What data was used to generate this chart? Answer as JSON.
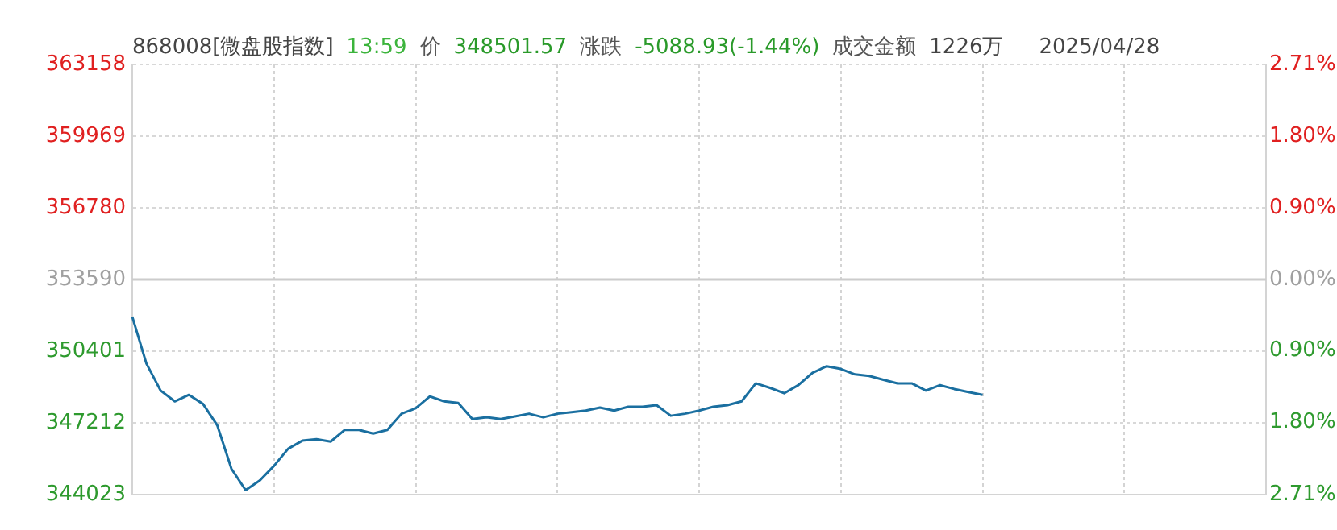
{
  "chart_data": {
    "type": "line",
    "title": "868008[微盘股指数]",
    "annotations": [
      "13:59",
      "价",
      "348501.57",
      "涨跌",
      "-5088.93(-1.44%)",
      "成交金额",
      "1226万",
      "2025/04/28"
    ],
    "categories": [
      null,
      null,
      null,
      null,
      null,
      null,
      null,
      null,
      null,
      null,
      null,
      null,
      null,
      null,
      null,
      null,
      null,
      null,
      null,
      null,
      null,
      null,
      null,
      null,
      null,
      null,
      null,
      null,
      null,
      null,
      null,
      null,
      null,
      null,
      null,
      null,
      null,
      null,
      null,
      null,
      null,
      null,
      null,
      null,
      null,
      null,
      null,
      null,
      null,
      null,
      null,
      null,
      null,
      null,
      null,
      null,
      null,
      null,
      null,
      null,
      null,
      null,
      null,
      null,
      null,
      null,
      null,
      null,
      null,
      null,
      null,
      null,
      null,
      null,
      null,
      null,
      null,
      null,
      null,
      null,
      null
    ],
    "series": [
      {
        "color": "#1a6fa0",
        "values": [
          351940,
          349850,
          348650,
          348170,
          348460,
          348050,
          347100,
          345170,
          344220,
          344650,
          345300,
          346060,
          346420,
          346490,
          346380,
          346900,
          346900,
          346740,
          346900,
          347620,
          347860,
          348390,
          348170,
          348100,
          347380,
          347460,
          347380,
          347500,
          347620,
          347460,
          347620,
          347690,
          347760,
          347890,
          347760,
          347930,
          347930,
          348000,
          347530,
          347620,
          347760,
          347930,
          348000,
          348170,
          348970,
          348770,
          348530,
          348890,
          349440,
          349730,
          349610,
          349370,
          349300,
          349130,
          348970,
          348970,
          348650,
          348890,
          348720,
          348580,
          348460,
          null,
          null,
          null,
          null,
          null,
          null,
          null,
          null,
          null,
          null,
          null,
          null,
          null,
          null,
          null,
          null,
          null,
          null,
          null,
          null
        ]
      }
    ],
    "ylim": [
      344023,
      363158
    ],
    "yticks": [
      344023,
      347212,
      350401,
      353590,
      356780,
      359969,
      363158
    ],
    "y2lim": [
      -2.71,
      2.71
    ],
    "y2ticks": [
      {
        "value": -2.71,
        "label": "2.71%"
      },
      {
        "value": -1.8,
        "label": "1.80%"
      },
      {
        "value": -0.9,
        "label": "0.90%"
      },
      {
        "value": 0,
        "label": "0.00%"
      },
      {
        "value": 0.9,
        "label": "0.90%"
      },
      {
        "value": 1.8,
        "label": "1.80%"
      },
      {
        "value": 2.71,
        "label": "2.71%"
      }
    ],
    "ref_lines": [
      {
        "axis": "y2",
        "value": 0,
        "color": "#cccccc"
      }
    ],
    "grid": true,
    "legend": false,
    "marker": "none",
    "line_style": "solid",
    "tick_labels": "y"
  }
}
